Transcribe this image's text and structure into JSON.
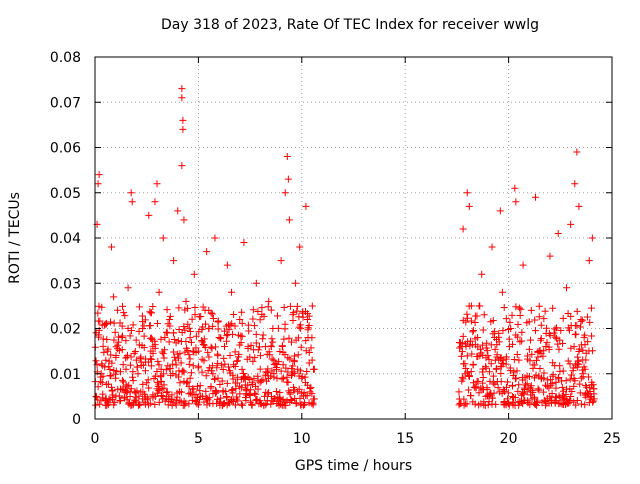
{
  "chart_data": {
    "type": "scatter",
    "title": "Day 318 of 2023, Rate Of TEC Index for receiver wwlg",
    "xlabel": "GPS time / hours",
    "ylabel": "ROTI / TECUs",
    "xlim": [
      0,
      25
    ],
    "ylim": [
      0,
      0.08
    ],
    "x_ticks": [
      0,
      5,
      10,
      15,
      20,
      25
    ],
    "y_ticks": [
      0,
      0.01,
      0.02,
      0.03,
      0.04,
      0.05,
      0.06,
      0.07,
      0.08
    ],
    "x_tick_labels": [
      "0",
      "5",
      "10",
      "15",
      "20",
      "25"
    ],
    "y_tick_labels": [
      "0",
      "0.01",
      "0.02",
      "0.03",
      "0.04",
      "0.05",
      "0.06",
      "0.07",
      "0.08"
    ],
    "grid": true,
    "marker": "+",
    "marker_color": "#ff0000",
    "series": [
      {
        "points": [
          [
            0.05,
            0.005
          ],
          [
            0.1,
            0.012
          ],
          [
            0.1,
            0.043
          ],
          [
            0.15,
            0.052
          ],
          [
            0.2,
            0.054
          ],
          [
            0.3,
            0.01
          ],
          [
            0.35,
            0.008
          ],
          [
            0.5,
            0.004
          ],
          [
            0.55,
            0.021
          ],
          [
            0.6,
            0.015
          ],
          [
            0.8,
            0.007
          ],
          [
            0.8,
            0.038
          ],
          [
            0.9,
            0.027
          ],
          [
            1.0,
            0.009
          ],
          [
            1.2,
            0.004
          ],
          [
            1.3,
            0.018
          ],
          [
            1.5,
            0.011
          ],
          [
            1.6,
            0.029
          ],
          [
            1.7,
            0.006
          ],
          [
            1.75,
            0.05
          ],
          [
            1.8,
            0.048
          ],
          [
            2.0,
            0.013
          ],
          [
            2.1,
            0.003
          ],
          [
            2.3,
            0.02
          ],
          [
            2.5,
            0.008
          ],
          [
            2.6,
            0.045
          ],
          [
            2.7,
            0.015
          ],
          [
            2.8,
            0.005
          ],
          [
            2.9,
            0.048
          ],
          [
            3.0,
            0.052
          ],
          [
            3.1,
            0.028
          ],
          [
            3.2,
            0.011
          ],
          [
            3.3,
            0.04
          ],
          [
            3.5,
            0.006
          ],
          [
            3.6,
            0.022
          ],
          [
            3.8,
            0.035
          ],
          [
            3.9,
            0.013
          ],
          [
            4.0,
            0.046
          ],
          [
            4.1,
            0.004
          ],
          [
            4.2,
            0.073
          ],
          [
            4.2,
            0.071
          ],
          [
            4.25,
            0.066
          ],
          [
            4.25,
            0.064
          ],
          [
            4.2,
            0.056
          ],
          [
            4.3,
            0.044
          ],
          [
            4.4,
            0.026
          ],
          [
            4.6,
            0.009
          ],
          [
            4.8,
            0.032
          ],
          [
            5.0,
            0.015
          ],
          [
            5.2,
            0.005
          ],
          [
            5.4,
            0.037
          ],
          [
            5.5,
            0.024
          ],
          [
            5.7,
            0.01
          ],
          [
            5.8,
            0.04
          ],
          [
            6.0,
            0.018
          ],
          [
            6.2,
            0.006
          ],
          [
            6.4,
            0.034
          ],
          [
            6.6,
            0.028
          ],
          [
            6.7,
            0.012
          ],
          [
            6.9,
            0.004
          ],
          [
            7.0,
            0.022
          ],
          [
            7.2,
            0.039
          ],
          [
            7.4,
            0.016
          ],
          [
            7.6,
            0.008
          ],
          [
            7.8,
            0.03
          ],
          [
            8.0,
            0.014
          ],
          [
            8.2,
            0.005
          ],
          [
            8.4,
            0.026
          ],
          [
            8.6,
            0.02
          ],
          [
            8.8,
            0.009
          ],
          [
            9.0,
            0.035
          ],
          [
            9.1,
            0.012
          ],
          [
            9.2,
            0.05
          ],
          [
            9.3,
            0.058
          ],
          [
            9.35,
            0.053
          ],
          [
            9.4,
            0.044
          ],
          [
            9.5,
            0.017
          ],
          [
            9.6,
            0.007
          ],
          [
            9.7,
            0.03
          ],
          [
            9.8,
            0.011
          ],
          [
            9.9,
            0.038
          ],
          [
            10.0,
            0.009
          ],
          [
            10.2,
            0.047
          ],
          [
            10.3,
            0.018
          ],
          [
            10.4,
            0.006
          ],
          [
            10.5,
            0.013
          ],
          [
            17.6,
            0.006
          ],
          [
            17.7,
            0.016
          ],
          [
            17.8,
            0.042
          ],
          [
            17.9,
            0.01
          ],
          [
            18.0,
            0.05
          ],
          [
            18.1,
            0.047
          ],
          [
            18.2,
            0.025
          ],
          [
            18.3,
            0.008
          ],
          [
            18.5,
            0.018
          ],
          [
            18.7,
            0.032
          ],
          [
            18.9,
            0.005
          ],
          [
            19.0,
            0.014
          ],
          [
            19.2,
            0.038
          ],
          [
            19.4,
            0.011
          ],
          [
            19.6,
            0.046
          ],
          [
            19.7,
            0.028
          ],
          [
            19.9,
            0.007
          ],
          [
            20.1,
            0.02
          ],
          [
            20.3,
            0.051
          ],
          [
            20.35,
            0.048
          ],
          [
            20.5,
            0.013
          ],
          [
            20.7,
            0.034
          ],
          [
            20.9,
            0.006
          ],
          [
            21.1,
            0.024
          ],
          [
            21.3,
            0.049
          ],
          [
            21.5,
            0.015
          ],
          [
            21.7,
            0.009
          ],
          [
            22.0,
            0.036
          ],
          [
            22.2,
            0.019
          ],
          [
            22.4,
            0.041
          ],
          [
            22.6,
            0.007
          ],
          [
            22.8,
            0.029
          ],
          [
            23.0,
            0.043
          ],
          [
            23.2,
            0.052
          ],
          [
            23.3,
            0.059
          ],
          [
            23.4,
            0.047
          ],
          [
            23.5,
            0.022
          ],
          [
            23.7,
            0.011
          ],
          [
            23.9,
            0.035
          ],
          [
            24.0,
            0.005
          ],
          [
            24.05,
            0.04
          ]
        ],
        "band": {
          "segments": [
            [
              0.0,
              10.6
            ],
            [
              17.6,
              24.1
            ]
          ],
          "y_range": [
            0.003,
            0.025
          ]
        }
      }
    ]
  }
}
